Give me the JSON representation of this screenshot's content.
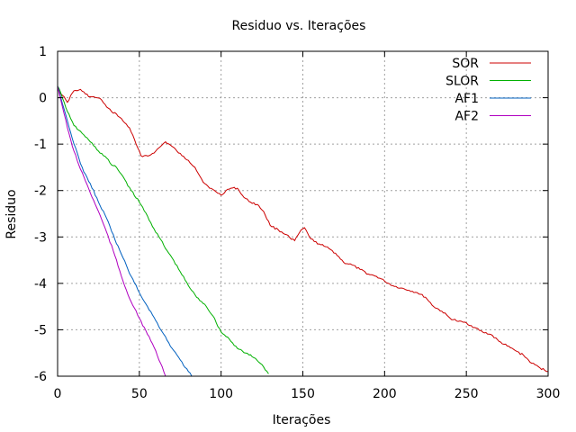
{
  "chart_data": {
    "type": "line",
    "title": "Residuo vs. Iterações",
    "xlabel": "Iterações",
    "ylabel": "Residuo",
    "xlim": [
      0,
      300
    ],
    "ylim": [
      -6,
      1
    ],
    "x_ticks": [
      0,
      50,
      100,
      150,
      200,
      250,
      300
    ],
    "x_tick_labels": [
      "0",
      "50",
      "100",
      "150",
      "200",
      "250",
      "300"
    ],
    "y_ticks": [
      1,
      0,
      -1,
      -2,
      -3,
      -4,
      -5,
      -6
    ],
    "y_tick_labels": [
      "1",
      "0",
      "-1",
      "-2",
      "-3",
      "-4",
      "-5",
      "-6"
    ],
    "grid": true,
    "legend_position": "top-right",
    "series": [
      {
        "name": "SOR",
        "color": "#cc0000",
        "x": [
          0,
          3,
          6,
          9,
          10,
          12,
          14,
          17,
          20,
          24,
          27,
          30,
          33,
          36,
          40,
          44,
          48,
          51,
          53,
          56,
          58,
          60,
          63,
          66,
          70,
          73,
          76,
          80,
          84,
          88,
          90,
          93,
          96,
          100,
          103,
          106,
          110,
          114,
          118,
          122,
          126,
          130,
          135,
          140,
          143,
          145,
          148,
          151,
          154,
          157,
          160,
          163,
          166,
          170,
          175,
          180,
          185,
          190,
          195,
          200,
          205,
          210,
          215,
          220,
          225,
          230,
          235,
          240,
          245,
          250,
          255,
          260,
          265,
          270,
          275,
          280,
          285,
          290,
          295,
          300
        ],
        "y": [
          0.2,
          0.05,
          -0.1,
          0.1,
          0.15,
          0.15,
          0.18,
          0.08,
          0.02,
          0.0,
          -0.05,
          -0.2,
          -0.3,
          -0.35,
          -0.5,
          -0.65,
          -1.0,
          -1.25,
          -1.25,
          -1.25,
          -1.2,
          -1.15,
          -1.05,
          -0.95,
          -1.05,
          -1.15,
          -1.25,
          -1.35,
          -1.5,
          -1.75,
          -1.85,
          -1.95,
          -2.0,
          -2.1,
          -2.0,
          -1.95,
          -1.95,
          -2.15,
          -2.25,
          -2.3,
          -2.45,
          -2.75,
          -2.85,
          -2.95,
          -3.05,
          -3.08,
          -2.9,
          -2.8,
          -3.0,
          -3.1,
          -3.15,
          -3.2,
          -3.25,
          -3.35,
          -3.55,
          -3.6,
          -3.7,
          -3.8,
          -3.85,
          -3.95,
          -4.05,
          -4.1,
          -4.15,
          -4.2,
          -4.3,
          -4.5,
          -4.6,
          -4.75,
          -4.82,
          -4.85,
          -4.95,
          -5.05,
          -5.1,
          -5.25,
          -5.35,
          -5.45,
          -5.55,
          -5.72,
          -5.82,
          -5.9
        ]
      },
      {
        "name": "SLOR",
        "color": "#00b000",
        "x": [
          0,
          2,
          4,
          6,
          8,
          10,
          13,
          16,
          20,
          25,
          30,
          33,
          36,
          40,
          45,
          50,
          55,
          60,
          63,
          66,
          70,
          75,
          80,
          85,
          90,
          95,
          100,
          105,
          110,
          115,
          120,
          125,
          129
        ],
        "y": [
          0.25,
          0.1,
          -0.1,
          -0.3,
          -0.45,
          -0.6,
          -0.7,
          -0.8,
          -0.95,
          -1.15,
          -1.3,
          -1.45,
          -1.5,
          -1.7,
          -2.0,
          -2.25,
          -2.55,
          -2.9,
          -3.05,
          -3.25,
          -3.45,
          -3.75,
          -4.05,
          -4.3,
          -4.45,
          -4.7,
          -5.05,
          -5.2,
          -5.4,
          -5.5,
          -5.6,
          -5.75,
          -5.95
        ]
      },
      {
        "name": "AF1",
        "color": "#0060c0",
        "x": [
          0,
          2,
          4,
          6,
          8,
          10,
          13,
          16,
          20,
          25,
          30,
          35,
          40,
          45,
          50,
          55,
          60,
          65,
          70,
          75,
          80,
          82
        ],
        "y": [
          0.25,
          0.0,
          -0.25,
          -0.5,
          -0.75,
          -1.0,
          -1.3,
          -1.6,
          -1.85,
          -2.25,
          -2.6,
          -3.05,
          -3.45,
          -3.85,
          -4.2,
          -4.5,
          -4.8,
          -5.1,
          -5.4,
          -5.65,
          -5.9,
          -6.0
        ]
      },
      {
        "name": "AF2",
        "color": "#b000c0",
        "x": [
          0,
          2,
          4,
          6,
          8,
          10,
          13,
          16,
          20,
          25,
          30,
          35,
          40,
          45,
          50,
          55,
          58,
          60,
          62,
          64,
          66
        ],
        "y": [
          0.25,
          -0.05,
          -0.35,
          -0.65,
          -0.9,
          -1.15,
          -1.45,
          -1.7,
          -2.05,
          -2.45,
          -2.9,
          -3.4,
          -3.95,
          -4.4,
          -4.75,
          -5.1,
          -5.3,
          -5.45,
          -5.65,
          -5.8,
          -6.0
        ]
      }
    ]
  }
}
